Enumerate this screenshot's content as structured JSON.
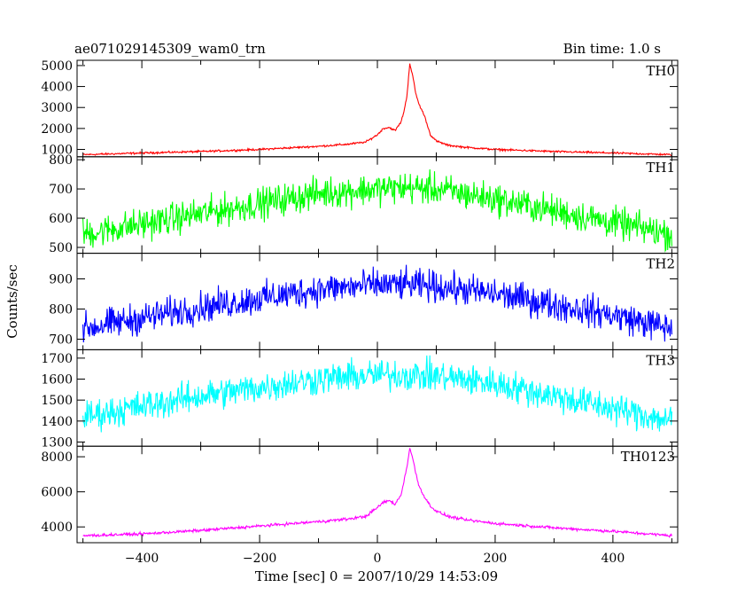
{
  "header": {
    "left_title": "ae071029145309_wam0_trn",
    "right_title": "Bin time: 1.0 s"
  },
  "chart_data": {
    "type": "line",
    "xlabel": "Time [sec] 0 = 2007/10/29 14:53:09",
    "ylabel": "Counts/sec",
    "xlim": [
      -510,
      510
    ],
    "xticks": [
      -400,
      -200,
      0,
      200,
      400
    ],
    "bin_time_s": 1.0,
    "panels": [
      {
        "name": "TH0",
        "color": "#ff0000",
        "ylim": [
          650,
          5250
        ],
        "yticks": [
          1000,
          2000,
          3000,
          4000,
          5000
        ],
        "series": [
          {
            "x": [
              -500,
              -400,
              -300,
              -200,
              -100,
              -50,
              -20,
              0,
              10,
              20,
              30,
              40,
              45,
              50,
              55,
              60,
              65,
              70,
              80,
              90,
              100,
              120,
              150,
              200,
              300,
              400,
              500
            ],
            "y": [
              750,
              830,
              900,
              1000,
              1150,
              1250,
              1350,
              1700,
              2000,
              2050,
              1900,
              2300,
              2800,
              3500,
              5100,
              4500,
              3700,
              3200,
              2600,
              1700,
              1400,
              1200,
              1100,
              1000,
              900,
              830,
              750
            ]
          }
        ]
      },
      {
        "name": "TH1",
        "color": "#00ff00",
        "ylim": [
          480,
          810
        ],
        "yticks": [
          500,
          600,
          700,
          800
        ],
        "series": [
          {
            "x": [
              -500,
              -400,
              -300,
              -200,
              -100,
              0,
              50,
              100,
              200,
              300,
              400,
              500
            ],
            "y": [
              545,
              580,
              615,
              650,
              685,
              700,
              705,
              700,
              665,
              625,
              585,
              545
            ]
          }
        ]
      },
      {
        "name": "TH2",
        "color": "#0000ff",
        "ylim": [
          665,
          985
        ],
        "yticks": [
          700,
          800,
          900
        ],
        "series": [
          {
            "x": [
              -500,
              -400,
              -300,
              -200,
              -100,
              0,
              50,
              100,
              200,
              300,
              400,
              500
            ],
            "y": [
              735,
              770,
              805,
              835,
              865,
              880,
              880,
              875,
              850,
              815,
              780,
              735
            ]
          }
        ]
      },
      {
        "name": "TH3",
        "color": "#00ffff",
        "ylim": [
          1280,
          1740
        ],
        "yticks": [
          1300,
          1400,
          1500,
          1600,
          1700
        ],
        "series": [
          {
            "x": [
              -500,
              -400,
              -300,
              -200,
              -100,
              0,
              50,
              100,
              200,
              300,
              400,
              500
            ],
            "y": [
              1420,
              1470,
              1520,
              1560,
              1600,
              1620,
              1620,
              1615,
              1580,
              1520,
              1460,
              1400
            ]
          }
        ]
      },
      {
        "name": "TH0123",
        "color": "#ff00ff",
        "ylim": [
          3100,
          8600
        ],
        "yticks": [
          4000,
          6000,
          8000
        ],
        "series": [
          {
            "x": [
              -500,
              -400,
              -300,
              -200,
              -100,
              -50,
              -20,
              0,
              10,
              20,
              30,
              40,
              45,
              50,
              55,
              60,
              65,
              70,
              80,
              90,
              100,
              120,
              150,
              200,
              300,
              400,
              500
            ],
            "y": [
              3500,
              3600,
              3800,
              4050,
              4300,
              4450,
              4600,
              5100,
              5400,
              5500,
              5300,
              5800,
              6600,
              7400,
              8500,
              7900,
              7100,
              6400,
              5700,
              5200,
              4900,
              4600,
              4400,
              4200,
              3950,
              3750,
              3500
            ]
          }
        ]
      }
    ]
  }
}
